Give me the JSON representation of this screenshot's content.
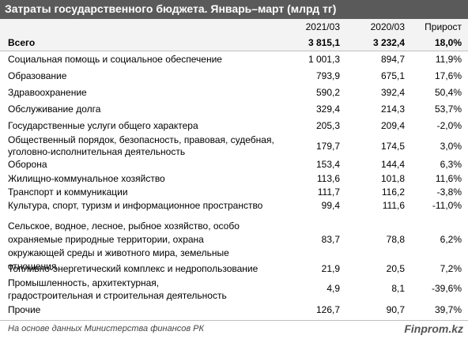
{
  "title": "Затраты государственного бюджета. Январь–март (млрд тг)",
  "headers": {
    "c1": "2021/03",
    "c2": "2020/03",
    "c3": "Прирост"
  },
  "rows": [
    {
      "label": "Всего",
      "v1": "3 815,1",
      "v2": "3 232,4",
      "v3": "18,0%"
    },
    {
      "label": "Социальная помощь и социальное обеспечение",
      "v1": "1 001,3",
      "v2": "894,7",
      "v3": "11,9%"
    },
    {
      "label": "Образование",
      "v1": "793,9",
      "v2": "675,1",
      "v3": "17,6%"
    },
    {
      "label": "Здравоохранение",
      "v1": "590,2",
      "v2": "392,4",
      "v3": "50,4%"
    },
    {
      "label": "Обслуживание долга",
      "v1": "329,4",
      "v2": "214,3",
      "v3": "53,7%"
    },
    {
      "label": "Государственные услуги общего характера",
      "v1": "205,3",
      "v2": "209,4",
      "v3": "-2,0%"
    },
    {
      "label": "Общественный порядок, безопасность, правовая, судебная, уголовно-исполнительная деятельность",
      "v1": "179,7",
      "v2": "174,5",
      "v3": "3,0%"
    },
    {
      "label": "Оборона",
      "v1": "153,4",
      "v2": "144,4",
      "v3": "6,3%"
    },
    {
      "label": "Жилищно-коммунальное хозяйство",
      "v1": "113,6",
      "v2": "101,8",
      "v3": "11,6%"
    },
    {
      "label": "Транспорт и коммуникации",
      "v1": "111,7",
      "v2": "116,2",
      "v3": "-3,8%"
    },
    {
      "label": "Культура, спорт, туризм и информационное пространство",
      "v1": "99,4",
      "v2": "111,6",
      "v3": "-11,0%"
    },
    {
      "label": "Сельское, водное, лесное, рыбное хозяйство, особо охраняемые природные территории, охрана окружающей среды и животного мира, земельные отношения",
      "v1": "83,7",
      "v2": "78,8",
      "v3": "6,2%"
    },
    {
      "label": "Топливно-энергетический комплекс и недропользование",
      "v1": "21,9",
      "v2": "20,5",
      "v3": "7,2%"
    },
    {
      "label": "Промышленность, архитектурная, градостроительная и строительная деятельность",
      "v1": "4,9",
      "v2": "8,1",
      "v3": "-39,6%"
    },
    {
      "label": "Прочие",
      "v1": "126,7",
      "v2": "90,7",
      "v3": "39,7%"
    }
  ],
  "footer": {
    "source": "На основе данных Министерства финансов РК",
    "brand": "Finprom.kz"
  }
}
